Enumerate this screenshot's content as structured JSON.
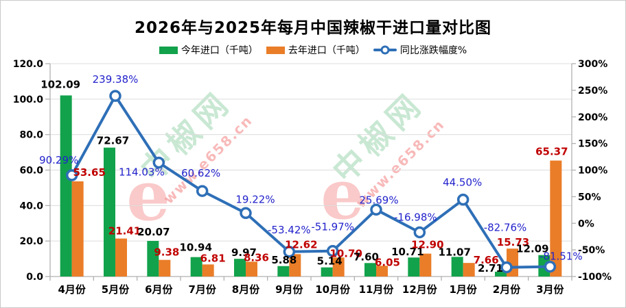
{
  "title": "2026年与2025年每月中国辣椒干进口量对比图",
  "legend": {
    "this_year": "今年进口（千吨）",
    "last_year": "去年进口（千吨）",
    "yoy": "同比涨跌幅度%"
  },
  "watermark": {
    "site": "中椒网",
    "url": "www.e658.cn",
    "logo": "e"
  },
  "colors": {
    "green": "#12a24b",
    "orange": "#ea7d28",
    "blue": "#2e6fb7",
    "dark_red": "#c00000",
    "pct_text": "#2222cc",
    "grid": "#dcdcdc",
    "axis": "#b0b0b0"
  },
  "chart_data": {
    "type": "bar+line",
    "title": "2026年与2025年每月中国辣椒干进口量对比图",
    "categories": [
      "4月份",
      "5月份",
      "6月份",
      "7月份",
      "8月份",
      "9月份",
      "10月份",
      "11月份",
      "12月份",
      "1月份",
      "2月份",
      "3月份"
    ],
    "series": [
      {
        "name": "今年进口（千吨）",
        "type": "bar",
        "axis": "left",
        "values": [
          102.09,
          72.67,
          20.07,
          10.94,
          9.97,
          5.88,
          5.14,
          7.6,
          10.71,
          11.07,
          2.71,
          12.09
        ]
      },
      {
        "name": "去年进口（千吨）",
        "type": "bar",
        "axis": "left",
        "values": [
          53.65,
          21.41,
          9.38,
          6.81,
          8.36,
          12.62,
          10.7,
          6.05,
          12.9,
          7.66,
          15.73,
          65.37
        ]
      },
      {
        "name": "同比涨跌幅度%",
        "type": "line",
        "axis": "right",
        "values": [
          90.29,
          239.38,
          114.03,
          60.62,
          19.22,
          -53.42,
          -51.97,
          25.69,
          -16.98,
          44.5,
          -82.76,
          -81.51
        ]
      }
    ],
    "left_axis": {
      "min": 0,
      "max": 120,
      "step": 20,
      "format": "one_decimal"
    },
    "right_axis": {
      "min": -100,
      "max": 300,
      "step": 50,
      "format": "percent"
    },
    "grid": "horizontal",
    "legend_position": "top",
    "label_offsets": {
      "green": [
        [
          -8,
          -16
        ],
        [
          5,
          -10
        ],
        [
          1,
          -13
        ],
        [
          -1,
          -14
        ],
        [
          6,
          -9
        ],
        [
          1,
          -9
        ],
        [
          4,
          -9
        ],
        [
          -6,
          -9
        ],
        [
          -9,
          -8
        ],
        [
          -4,
          -7
        ],
        [
          -15,
          -5
        ],
        [
          -17,
          -9
        ]
      ],
      "orange": [
        [
          17,
          -13
        ],
        [
          5,
          -11
        ],
        [
          3,
          -11
        ],
        [
          7,
          -9
        ],
        [
          7,
          -6
        ],
        [
          9,
          -14
        ],
        [
          11,
          -6
        ],
        [
          8,
          -5
        ],
        [
          3,
          -13
        ],
        [
          25,
          -4
        ],
        [
          1,
          -9
        ],
        [
          -6,
          -13
        ]
      ],
      "pct": [
        [
          -19,
          -22
        ],
        [
          0,
          -24
        ],
        [
          -25,
          14
        ],
        [
          -2,
          -26
        ],
        [
          14,
          -20
        ],
        [
          0,
          -32
        ],
        [
          0,
          -35
        ],
        [
          4,
          -14
        ],
        [
          -6,
          -22
        ],
        [
          -1,
          -25
        ],
        [
          -2,
          -58
        ],
        [
          16,
          -15
        ]
      ]
    }
  }
}
